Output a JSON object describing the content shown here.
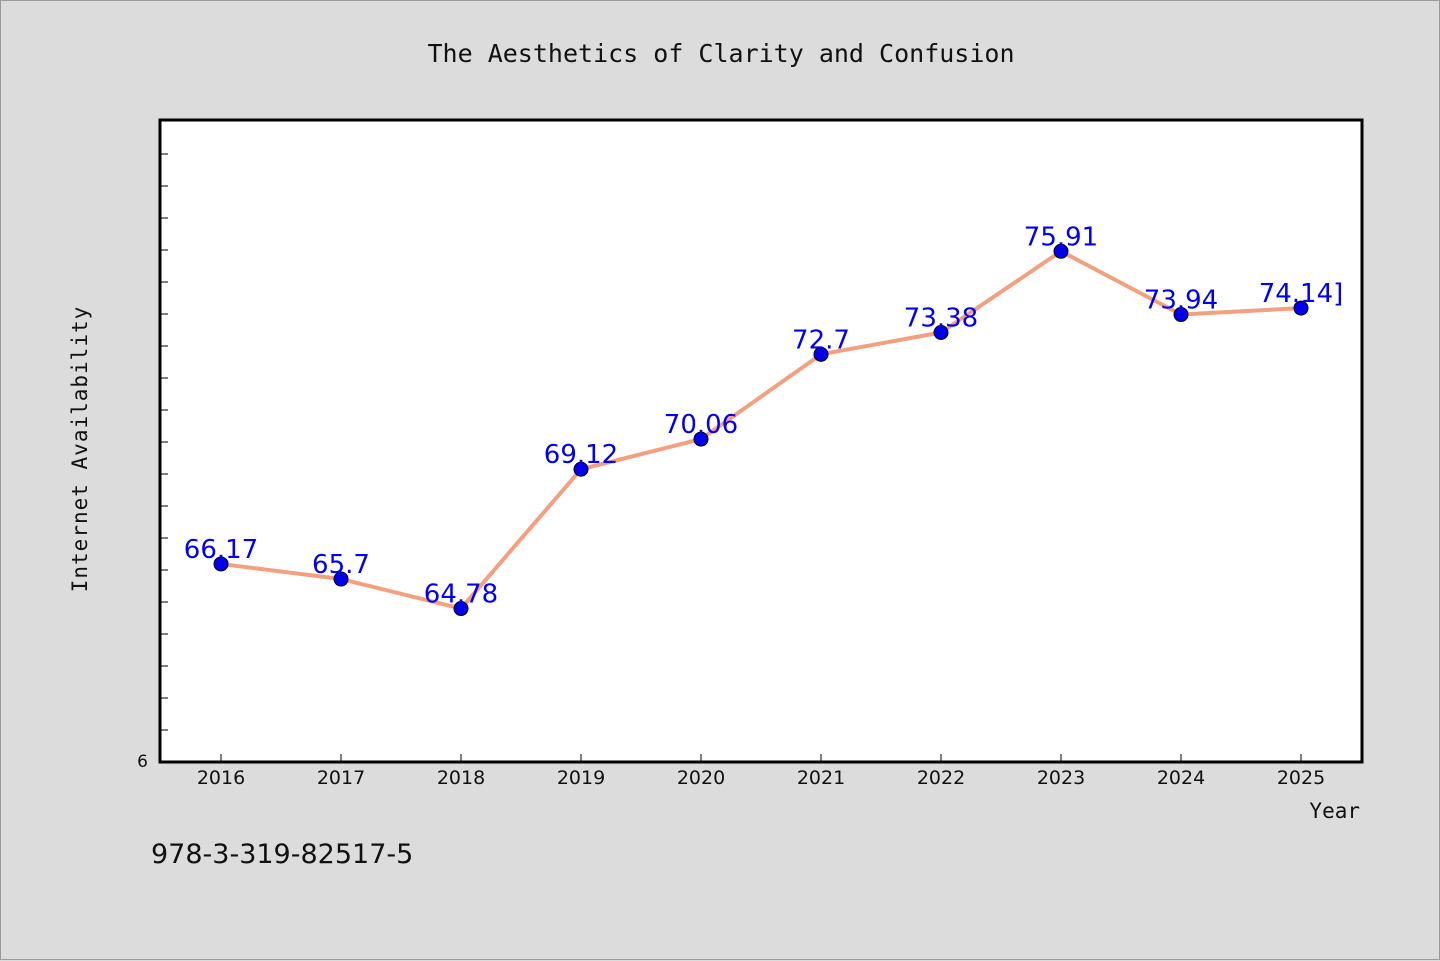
{
  "chart_data": {
    "type": "line",
    "title": "The Aesthetics of Clarity and Confusion",
    "xlabel": "Year",
    "ylabel": "Internet Availability",
    "categories": [
      "2016",
      "2017",
      "2018",
      "2019",
      "2020",
      "2021",
      "2022",
      "2023",
      "2024",
      "2025"
    ],
    "series": [
      {
        "values": [
          66.17,
          65.7,
          64.78,
          69.12,
          70.06,
          72.7,
          73.38,
          75.91,
          73.94,
          74.14
        ]
      }
    ],
    "data_labels": [
      "66.17",
      "65.7",
      "64.78",
      "69.12",
      "70.06",
      "72.7",
      "73.38",
      "75.91",
      "73.94",
      "74.14]"
    ],
    "y_tick_label": "6",
    "ylim": [
      60,
      80
    ],
    "grid": false,
    "line_color": "#f4a07f",
    "marker_color": "#0000ee",
    "label_color": "#0000ee"
  },
  "footer_code": "978-3-319-82517-5"
}
